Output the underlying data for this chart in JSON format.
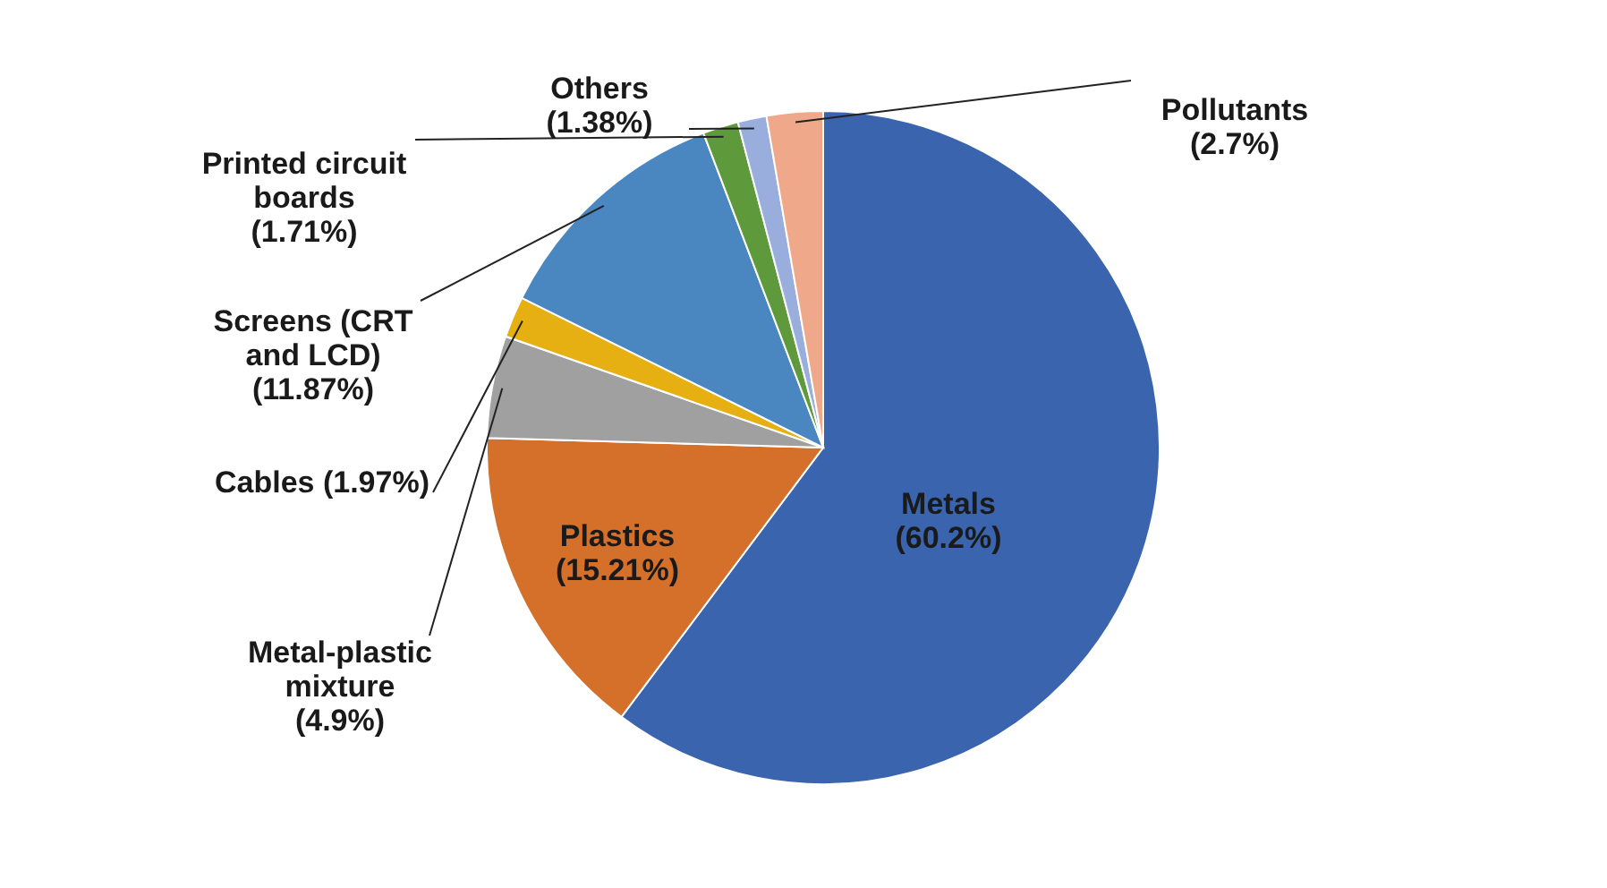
{
  "chart_data": {
    "type": "pie",
    "categories": [
      "Metals",
      "Plastics",
      "Metal-plastic\nmixture",
      "Cables",
      "Screens (CRT\nand LCD)",
      "Printed circuit\nboards",
      "Others",
      "Pollutants"
    ],
    "values": [
      60.2,
      15.21,
      4.9,
      1.97,
      11.87,
      1.71,
      1.38,
      2.7
    ],
    "value_labels": [
      "(60.2%)",
      "(15.21%)",
      "(4.9%)",
      "(1.97%)",
      "(11.87%)",
      "(1.71%)",
      "(1.38%)",
      "(2.7%)"
    ],
    "colors": [
      "#3a65ae",
      "#d4702a",
      "#a0a0a0",
      "#e6b012",
      "#4a87c0",
      "#5e9a3c",
      "#9aaede",
      "#f0a88a"
    ]
  }
}
